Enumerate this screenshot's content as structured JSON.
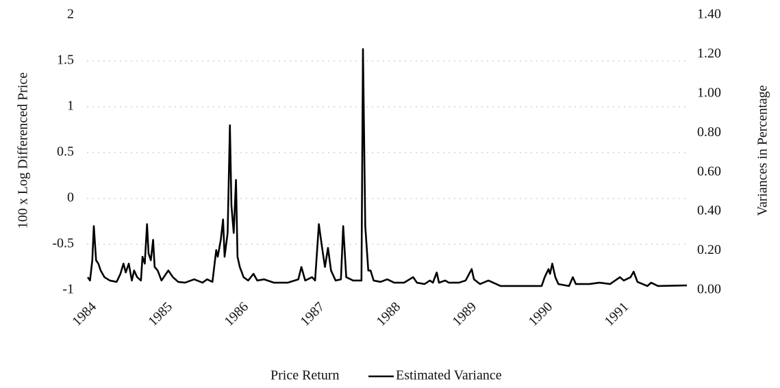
{
  "chart_data": {
    "type": "line",
    "y_label": "100 x Log Differenced Price",
    "y2_label": "Variances in Percentage",
    "xlim": [
      1983.97,
      1991.86
    ],
    "xticks": [
      1984,
      1985,
      1986,
      1987,
      1988,
      1989,
      1990,
      1991
    ],
    "ylim": [
      -1,
      2
    ],
    "yticks": [
      -1,
      -0.5,
      0,
      0.5,
      1,
      1.5,
      2
    ],
    "y2lim": [
      0,
      1.4
    ],
    "y2ticks": [
      {
        "value": 0,
        "label": "0.00"
      },
      {
        "value": 0.2,
        "label": "0.20"
      },
      {
        "value": 0.4,
        "label": "0.40"
      },
      {
        "value": 0.6,
        "label": "0.60"
      },
      {
        "value": 0.8,
        "label": "0.80"
      },
      {
        "value": 1.0,
        "label": "1.00"
      },
      {
        "value": 1.2,
        "label": "1.20"
      },
      {
        "value": 1.4,
        "label": "1.40"
      }
    ],
    "grid": true,
    "legend": "bottom",
    "x": [
      1983.98,
      1984.01,
      1984.04,
      1984.06,
      1984.09,
      1984.12,
      1984.15,
      1984.2,
      1984.27,
      1984.36,
      1984.41,
      1984.45,
      1984.48,
      1984.52,
      1984.56,
      1984.59,
      1984.63,
      1984.68,
      1984.7,
      1984.73,
      1984.76,
      1984.78,
      1984.81,
      1984.84,
      1984.86,
      1984.9,
      1984.95,
      1985.04,
      1985.1,
      1985.17,
      1985.26,
      1985.38,
      1985.49,
      1985.55,
      1985.62,
      1985.67,
      1985.69,
      1985.73,
      1985.76,
      1985.78,
      1985.82,
      1985.85,
      1985.87,
      1985.9,
      1985.93,
      1985.95,
      1985.98,
      1986.03,
      1986.09,
      1986.16,
      1986.21,
      1986.3,
      1986.43,
      1986.61,
      1986.75,
      1986.79,
      1986.84,
      1986.93,
      1986.97,
      1987.02,
      1987.06,
      1987.1,
      1987.14,
      1987.18,
      1987.24,
      1987.31,
      1987.34,
      1987.38,
      1987.47,
      1987.58,
      1987.6,
      1987.63,
      1987.67,
      1987.7,
      1987.74,
      1987.83,
      1987.92,
      1988.01,
      1988.14,
      1988.26,
      1988.31,
      1988.41,
      1988.48,
      1988.52,
      1988.57,
      1988.6,
      1988.68,
      1988.73,
      1988.86,
      1988.95,
      1989.03,
      1989.06,
      1989.14,
      1989.25,
      1989.41,
      1989.95,
      1989.99,
      1990.04,
      1990.06,
      1990.09,
      1990.13,
      1990.17,
      1990.31,
      1990.36,
      1990.4,
      1990.58,
      1990.71,
      1990.85,
      1990.98,
      1991.03,
      1991.12,
      1991.16,
      1991.21,
      1991.34,
      1991.39,
      1991.48,
      1991.86
    ],
    "series": [
      {
        "name": "Price Return",
        "color": "#ffffff"
      },
      {
        "name": "Estimated Variance",
        "color": "#000000",
        "axis": "y2",
        "values": [
          0.066,
          0.049,
          0.152,
          0.326,
          0.152,
          0.135,
          0.1,
          0.066,
          0.049,
          0.042,
          0.083,
          0.135,
          0.09,
          0.135,
          0.049,
          0.1,
          0.066,
          0.049,
          0.17,
          0.135,
          0.336,
          0.187,
          0.152,
          0.256,
          0.118,
          0.1,
          0.049,
          0.1,
          0.066,
          0.042,
          0.038,
          0.055,
          0.038,
          0.055,
          0.042,
          0.204,
          0.17,
          0.256,
          0.36,
          0.17,
          0.291,
          0.839,
          0.43,
          0.291,
          0.561,
          0.17,
          0.118,
          0.066,
          0.049,
          0.083,
          0.049,
          0.055,
          0.038,
          0.038,
          0.055,
          0.118,
          0.049,
          0.066,
          0.049,
          0.336,
          0.222,
          0.118,
          0.215,
          0.1,
          0.049,
          0.055,
          0.326,
          0.066,
          0.049,
          0.049,
          1.227,
          0.326,
          0.1,
          0.1,
          0.049,
          0.042,
          0.055,
          0.038,
          0.038,
          0.066,
          0.038,
          0.031,
          0.049,
          0.038,
          0.09,
          0.038,
          0.049,
          0.038,
          0.038,
          0.049,
          0.107,
          0.055,
          0.031,
          0.049,
          0.021,
          0.021,
          0.066,
          0.107,
          0.083,
          0.135,
          0.066,
          0.031,
          0.021,
          0.066,
          0.031,
          0.031,
          0.038,
          0.031,
          0.066,
          0.049,
          0.066,
          0.094,
          0.042,
          0.021,
          0.038,
          0.021,
          0.024
        ]
      }
    ]
  }
}
